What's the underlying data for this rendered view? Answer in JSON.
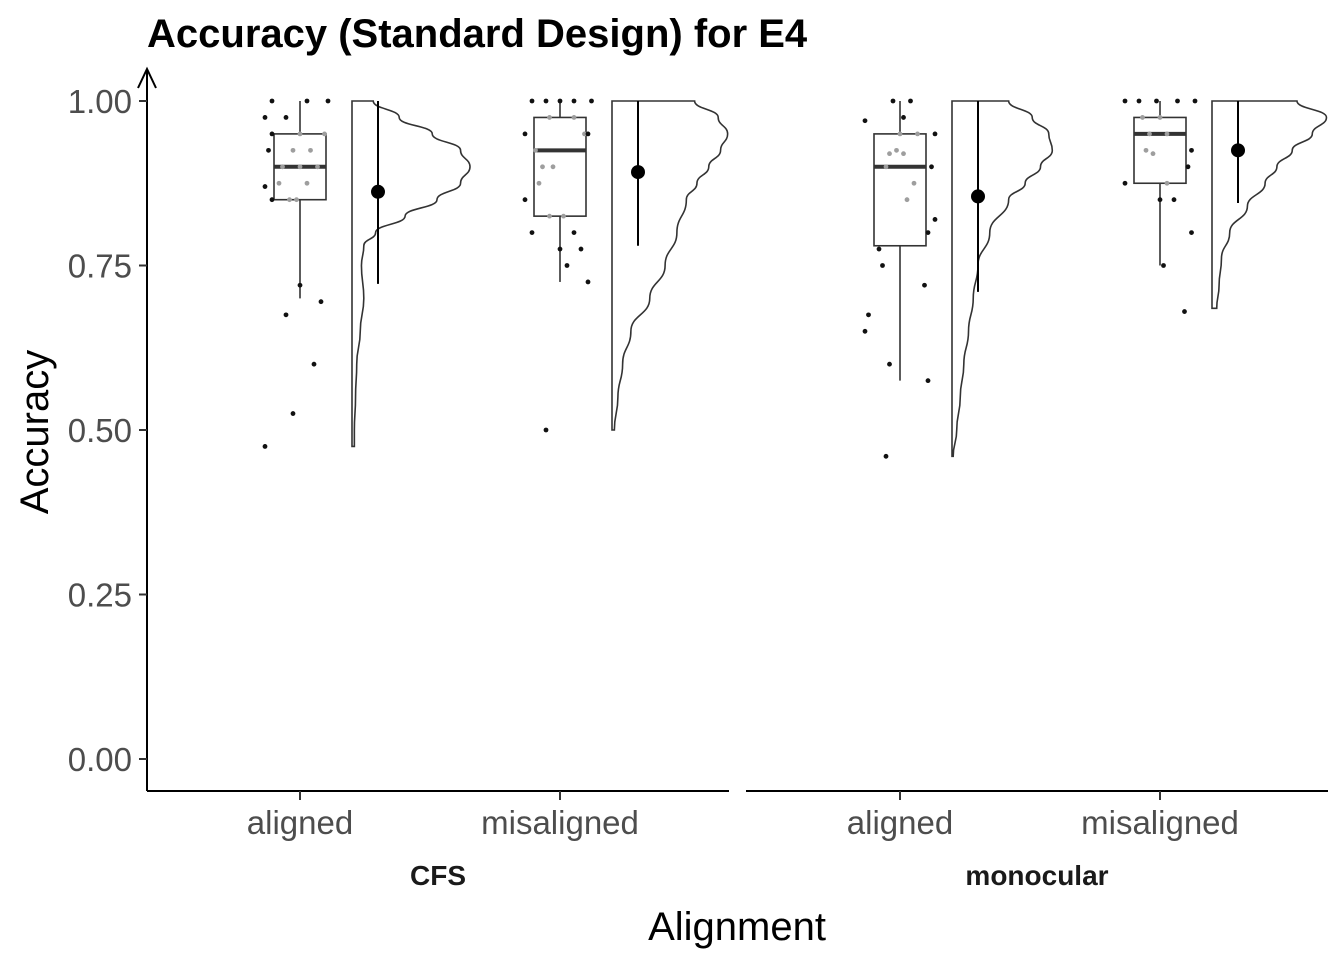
{
  "chart_data": {
    "type": "raincloud",
    "title": "Accuracy (Standard Design) for E4",
    "xlabel": "Alignment",
    "ylabel": "Accuracy",
    "ylim": [
      0,
      1
    ],
    "y_ticks": [
      "0.00",
      "0.25",
      "0.50",
      "0.75",
      "1.00"
    ],
    "y_tick_values": [
      0,
      0.25,
      0.5,
      0.75,
      1.0
    ],
    "grid": false,
    "facets": [
      {
        "name": "CFS",
        "groups": [
          {
            "category": "aligned",
            "box": {
              "whisker_low": 0.7,
              "q1": 0.85,
              "median": 0.9,
              "q3": 0.95,
              "whisker_high": 1.0
            },
            "mean": 0.862,
            "ci": [
              0.722,
              1.0
            ],
            "density_range": [
              0.475,
              1.0
            ],
            "density": [
              [
                0.475,
                0.02
              ],
              [
                0.5,
                0.02
              ],
              [
                0.55,
                0.03
              ],
              [
                0.6,
                0.04
              ],
              [
                0.65,
                0.07
              ],
              [
                0.7,
                0.1
              ],
              [
                0.75,
                0.08
              ],
              [
                0.78,
                0.1
              ],
              [
                0.8,
                0.2
              ],
              [
                0.825,
                0.45
              ],
              [
                0.85,
                0.72
              ],
              [
                0.875,
                0.92
              ],
              [
                0.9,
                1.0
              ],
              [
                0.925,
                0.92
              ],
              [
                0.95,
                0.68
              ],
              [
                0.975,
                0.4
              ],
              [
                1.0,
                0.18
              ]
            ],
            "points": [
              0.475,
              0.525,
              0.6,
              0.675,
              0.695,
              0.72,
              0.85,
              0.85,
              0.85,
              0.87,
              0.875,
              0.875,
              0.9,
              0.9,
              0.9,
              0.925,
              0.925,
              0.925,
              0.95,
              0.95,
              0.95,
              0.975,
              0.975,
              1.0,
              1.0,
              1.0
            ],
            "points_jitter": [
              0.0,
              0.4,
              0.7,
              0.3,
              0.8,
              0.5,
              0.1,
              0.35,
              0.45,
              0.0,
              0.2,
              0.6,
              0.25,
              0.5,
              0.75,
              0.05,
              0.4,
              0.65,
              0.1,
              0.5,
              0.85,
              0.0,
              0.3,
              0.1,
              0.6,
              0.9
            ]
          },
          {
            "category": "misaligned",
            "box": {
              "whisker_low": 0.725,
              "q1": 0.825,
              "median": 0.925,
              "q3": 0.975,
              "whisker_high": 1.0
            },
            "mean": 0.892,
            "ci": [
              0.78,
              1.0
            ],
            "density_range": [
              0.5,
              1.0
            ],
            "density": [
              [
                0.5,
                0.02
              ],
              [
                0.55,
                0.05
              ],
              [
                0.6,
                0.09
              ],
              [
                0.65,
                0.16
              ],
              [
                0.7,
                0.32
              ],
              [
                0.75,
                0.45
              ],
              [
                0.8,
                0.55
              ],
              [
                0.85,
                0.63
              ],
              [
                0.875,
                0.72
              ],
              [
                0.9,
                0.82
              ],
              [
                0.925,
                0.92
              ],
              [
                0.95,
                0.98
              ],
              [
                0.975,
                0.9
              ],
              [
                1.0,
                0.7
              ]
            ],
            "points": [
              0.5,
              0.725,
              0.75,
              0.775,
              0.775,
              0.8,
              0.8,
              0.825,
              0.825,
              0.85,
              0.875,
              0.9,
              0.9,
              0.925,
              0.95,
              0.95,
              0.95,
              0.975,
              0.975,
              1.0,
              1.0,
              1.0,
              1.0,
              1.0
            ],
            "points_jitter": [
              0.3,
              0.9,
              0.6,
              0.5,
              0.8,
              0.1,
              0.7,
              0.35,
              0.55,
              0.0,
              0.2,
              0.25,
              0.4,
              0.15,
              0.0,
              0.85,
              0.9,
              0.35,
              0.7,
              0.1,
              0.3,
              0.5,
              0.7,
              0.95
            ]
          }
        ]
      },
      {
        "name": "monocular",
        "groups": [
          {
            "category": "aligned",
            "box": {
              "whisker_low": 0.575,
              "q1": 0.78,
              "median": 0.9,
              "q3": 0.95,
              "whisker_high": 1.0
            },
            "mean": 0.855,
            "ci": [
              0.71,
              1.0
            ],
            "density_range": [
              0.46,
              1.0
            ],
            "density": [
              [
                0.46,
                0.01
              ],
              [
                0.5,
                0.04
              ],
              [
                0.55,
                0.07
              ],
              [
                0.6,
                0.1
              ],
              [
                0.65,
                0.14
              ],
              [
                0.7,
                0.18
              ],
              [
                0.75,
                0.22
              ],
              [
                0.8,
                0.32
              ],
              [
                0.85,
                0.48
              ],
              [
                0.875,
                0.62
              ],
              [
                0.9,
                0.75
              ],
              [
                0.925,
                0.85
              ],
              [
                0.95,
                0.82
              ],
              [
                0.975,
                0.68
              ],
              [
                1.0,
                0.48
              ]
            ],
            "points": [
              0.46,
              0.575,
              0.6,
              0.65,
              0.675,
              0.72,
              0.75,
              0.775,
              0.8,
              0.82,
              0.85,
              0.875,
              0.9,
              0.9,
              0.92,
              0.92,
              0.925,
              0.95,
              0.95,
              0.95,
              0.97,
              0.975,
              1.0,
              1.0
            ],
            "points_jitter": [
              0.3,
              0.9,
              0.35,
              0.0,
              0.05,
              0.85,
              0.25,
              0.2,
              0.9,
              1.0,
              0.6,
              0.7,
              0.3,
              0.95,
              0.35,
              0.55,
              0.45,
              0.5,
              0.75,
              1.0,
              0.0,
              0.55,
              0.4,
              0.65
            ]
          },
          {
            "category": "misaligned",
            "box": {
              "whisker_low": 0.75,
              "q1": 0.875,
              "median": 0.95,
              "q3": 0.975,
              "whisker_high": 1.0
            },
            "mean": 0.925,
            "ci": [
              0.845,
              1.0
            ],
            "density_range": [
              0.685,
              1.0
            ],
            "density": [
              [
                0.685,
                0.04
              ],
              [
                0.72,
                0.06
              ],
              [
                0.76,
                0.08
              ],
              [
                0.8,
                0.15
              ],
              [
                0.84,
                0.3
              ],
              [
                0.875,
                0.45
              ],
              [
                0.9,
                0.55
              ],
              [
                0.925,
                0.68
              ],
              [
                0.95,
                0.85
              ],
              [
                0.975,
                0.97
              ],
              [
                1.0,
                0.72
              ]
            ],
            "points": [
              0.68,
              0.75,
              0.8,
              0.85,
              0.85,
              0.875,
              0.875,
              0.9,
              0.92,
              0.925,
              0.925,
              0.95,
              0.95,
              0.975,
              0.975,
              1.0,
              1.0,
              1.0,
              1.0,
              1.0
            ],
            "points_jitter": [
              0.85,
              0.55,
              0.95,
              0.5,
              0.7,
              0.0,
              0.6,
              0.9,
              0.4,
              0.3,
              0.95,
              0.35,
              0.6,
              0.25,
              0.5,
              0.0,
              0.2,
              0.45,
              0.75,
              1.0
            ]
          }
        ]
      }
    ]
  }
}
